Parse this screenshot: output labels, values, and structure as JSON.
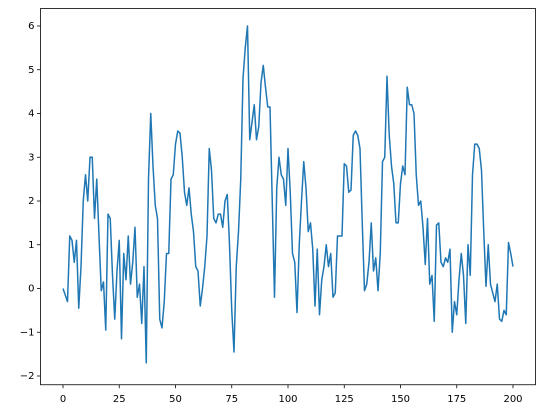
{
  "chart_data": {
    "type": "line",
    "x": [
      0,
      1,
      2,
      3,
      4,
      5,
      6,
      7,
      8,
      9,
      10,
      11,
      12,
      13,
      14,
      15,
      16,
      17,
      18,
      19,
      20,
      21,
      22,
      23,
      24,
      25,
      26,
      27,
      28,
      29,
      30,
      31,
      32,
      33,
      34,
      35,
      36,
      37,
      38,
      39,
      40,
      41,
      42,
      43,
      44,
      45,
      46,
      47,
      48,
      49,
      50,
      51,
      52,
      53,
      54,
      55,
      56,
      57,
      58,
      59,
      60,
      61,
      62,
      63,
      64,
      65,
      66,
      67,
      68,
      69,
      70,
      71,
      72,
      73,
      74,
      75,
      76,
      77,
      78,
      79,
      80,
      81,
      82,
      83,
      84,
      85,
      86,
      87,
      88,
      89,
      90,
      91,
      92,
      93,
      94,
      95,
      96,
      97,
      98,
      99,
      100,
      101,
      102,
      103,
      104,
      105,
      106,
      107,
      108,
      109,
      110,
      111,
      112,
      113,
      114,
      115,
      116,
      117,
      118,
      119,
      120,
      121,
      122,
      123,
      124,
      125,
      126,
      127,
      128,
      129,
      130,
      131,
      132,
      133,
      134,
      135,
      136,
      137,
      138,
      139,
      140,
      141,
      142,
      143,
      144,
      145,
      146,
      147,
      148,
      149,
      150,
      151,
      152,
      153,
      154,
      155,
      156,
      157,
      158,
      159,
      160,
      161,
      162,
      163,
      164,
      165,
      166,
      167,
      168,
      169,
      170,
      171,
      172,
      173,
      174,
      175,
      176,
      177,
      178,
      179,
      180,
      181,
      182,
      183,
      184,
      185,
      186,
      187,
      188,
      189,
      190,
      191,
      192,
      193,
      194,
      195,
      196,
      197,
      198,
      199,
      200
    ],
    "values": [
      0.0,
      -0.15,
      -0.3,
      1.2,
      1.1,
      0.6,
      1.1,
      -0.45,
      0.5,
      2.0,
      2.6,
      2.0,
      3.0,
      3.0,
      1.6,
      2.5,
      1.2,
      -0.05,
      0.15,
      -0.95,
      1.7,
      1.6,
      0.3,
      -0.7,
      0.4,
      1.1,
      -1.15,
      0.8,
      0.2,
      1.2,
      0.1,
      0.6,
      1.4,
      -0.2,
      0.1,
      -0.8,
      0.5,
      -1.7,
      2.5,
      4.0,
      2.8,
      1.9,
      1.6,
      -0.7,
      -0.9,
      -0.3,
      0.8,
      0.8,
      2.5,
      2.6,
      3.3,
      3.6,
      3.55,
      3.0,
      2.2,
      1.9,
      2.3,
      1.7,
      1.3,
      0.5,
      0.4,
      -0.4,
      0.0,
      0.5,
      1.2,
      3.2,
      2.7,
      1.6,
      1.5,
      1.7,
      1.7,
      1.4,
      2.0,
      2.15,
      1.0,
      -0.5,
      -1.45,
      0.5,
      1.3,
      2.5,
      4.8,
      5.5,
      6.0,
      3.4,
      3.8,
      4.2,
      3.4,
      3.7,
      4.7,
      5.1,
      4.6,
      4.15,
      4.15,
      2.0,
      -0.2,
      2.3,
      3.0,
      2.6,
      2.5,
      1.9,
      3.2,
      2.2,
      0.8,
      0.6,
      -0.55,
      1.0,
      2.0,
      2.9,
      2.3,
      1.3,
      1.5,
      0.9,
      -0.4,
      0.9,
      -0.6,
      0.2,
      0.5,
      1.0,
      0.5,
      0.8,
      -0.2,
      -0.1,
      1.2,
      1.2,
      1.2,
      2.85,
      2.8,
      2.2,
      2.25,
      3.5,
      3.6,
      3.5,
      3.2,
      1.5,
      -0.05,
      0.1,
      0.6,
      1.5,
      0.4,
      0.7,
      -0.05,
      0.8,
      2.9,
      3.0,
      4.85,
      3.5,
      2.8,
      2.4,
      1.5,
      1.5,
      2.4,
      2.8,
      2.6,
      4.6,
      4.2,
      4.2,
      4.0,
      2.6,
      1.9,
      2.0,
      1.4,
      0.55,
      1.6,
      0.1,
      0.3,
      -0.75,
      1.45,
      1.5,
      0.6,
      0.5,
      0.7,
      0.6,
      0.9,
      -1.0,
      -0.3,
      -0.6,
      0.2,
      0.8,
      0.3,
      -0.8,
      1.0,
      0.3,
      2.6,
      3.3,
      3.3,
      3.2,
      2.7,
      1.3,
      0.05,
      1.0,
      0.1,
      -0.1,
      -0.3,
      0.1,
      -0.7,
      -0.75,
      -0.5,
      -0.6,
      1.05,
      0.8,
      0.5
    ],
    "color": "#1f77b4",
    "xlim": [
      -10,
      210
    ],
    "ylim": [
      -2.2,
      6.4
    ],
    "xticks": [
      0,
      25,
      50,
      75,
      100,
      125,
      150,
      175,
      200
    ],
    "yticks": [
      {
        "value": -2,
        "label": "−2"
      },
      {
        "value": -1,
        "label": "−1"
      },
      0,
      1,
      2,
      3,
      4,
      5,
      6
    ]
  }
}
